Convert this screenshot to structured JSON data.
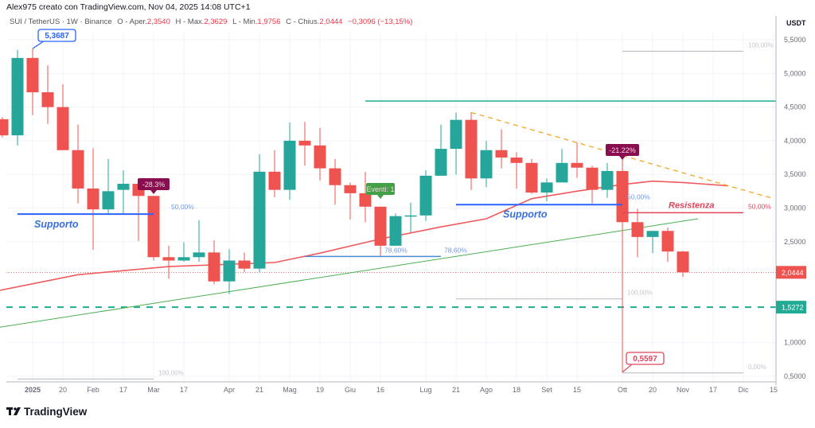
{
  "header": {
    "credit": "Alex975 creato con TradingView.com, Nov 04, 2025 14:08 UTC+1",
    "symbol": "SUI / TetherUS · 1W · Binance",
    "open_label": "O - Aper.",
    "open": "2,3540",
    "high_label": "H - Max.",
    "high": "2,3629",
    "low_label": "L - Min.",
    "low": "1,9756",
    "close_label": "C - Chius.",
    "close": "2,0444",
    "change": "−0,3096 (−13,15%)"
  },
  "brand": "TradingView",
  "colors": {
    "up": "#26a69a",
    "down": "#ef5350",
    "ma": "#f05a5e",
    "support": "#2962ff",
    "resist": "#e0455a",
    "trend": "#4caf50",
    "dashed_orange": "#f5a623",
    "teal_level": "#22ab94",
    "badge": "#880e4f",
    "event": "#4caf50",
    "fib_gray": "#b2b5be"
  },
  "chart_data": {
    "type": "candlestick",
    "timeframe": "1W",
    "currency": "USDT",
    "ylim": [
      0.45,
      5.75
    ],
    "grid": true,
    "y_ticks": [
      "5,5000",
      "5,0000",
      "4,5000",
      "4,0000",
      "3,5000",
      "3,0000",
      "2,5000",
      "1,0000",
      "0,5000"
    ],
    "y_tick_values": [
      5.5,
      5.0,
      4.5,
      4.0,
      3.5,
      3.0,
      2.5,
      1.0,
      0.5
    ],
    "x_ticks": [
      {
        "label": "2025",
        "date": "2025-01-06",
        "bold": true
      },
      {
        "label": "20",
        "date": "2025-01-20"
      },
      {
        "label": "Feb",
        "date": "2025-02-03"
      },
      {
        "label": "17",
        "date": "2025-02-17"
      },
      {
        "label": "Mar",
        "date": "2025-03-03"
      },
      {
        "label": "17",
        "date": "2025-03-17"
      },
      {
        "label": "Apr",
        "date": "2025-04-07"
      },
      {
        "label": "21",
        "date": "2025-04-21"
      },
      {
        "label": "Mag",
        "date": "2025-05-05"
      },
      {
        "label": "19",
        "date": "2025-05-19"
      },
      {
        "label": "Giu",
        "date": "2025-06-02"
      },
      {
        "label": "16",
        "date": "2025-06-16"
      },
      {
        "label": "Lug",
        "date": "2025-07-07"
      },
      {
        "label": "21",
        "date": "2025-07-21"
      },
      {
        "label": "Ago",
        "date": "2025-08-04"
      },
      {
        "label": "18",
        "date": "2025-08-18"
      },
      {
        "label": "Set",
        "date": "2025-09-01"
      },
      {
        "label": "15",
        "date": "2025-09-15"
      },
      {
        "label": "Ott",
        "date": "2025-10-06"
      },
      {
        "label": "20",
        "date": "2025-10-20"
      },
      {
        "label": "Nov",
        "date": "2025-11-03"
      },
      {
        "label": "17",
        "date": "2025-11-17"
      },
      {
        "label": "Dic",
        "date": "2025-12-01"
      },
      {
        "label": "15",
        "date": "2025-12-15"
      }
    ],
    "candles": [
      {
        "date": "2024-12-23",
        "o": 4.32,
        "h": 4.35,
        "l": 4.05,
        "c": 4.08
      },
      {
        "date": "2024-12-30",
        "o": 4.08,
        "h": 5.35,
        "l": 3.93,
        "c": 5.23
      },
      {
        "date": "2025-01-06",
        "o": 5.23,
        "h": 5.3687,
        "l": 4.38,
        "c": 4.72
      },
      {
        "date": "2025-01-13",
        "o": 4.72,
        "h": 5.12,
        "l": 4.25,
        "c": 4.5
      },
      {
        "date": "2025-01-20",
        "o": 4.5,
        "h": 4.84,
        "l": 3.86,
        "c": 3.86
      },
      {
        "date": "2025-01-27",
        "o": 3.86,
        "h": 4.24,
        "l": 3.07,
        "c": 3.29
      },
      {
        "date": "2025-02-03",
        "o": 3.29,
        "h": 3.89,
        "l": 2.38,
        "c": 2.98
      },
      {
        "date": "2025-02-10",
        "o": 2.98,
        "h": 3.73,
        "l": 2.9,
        "c": 3.25
      },
      {
        "date": "2025-02-17",
        "o": 3.27,
        "h": 3.56,
        "l": 2.92,
        "c": 3.36
      },
      {
        "date": "2025-02-24",
        "o": 3.36,
        "h": 3.36,
        "l": 2.51,
        "c": 3.18
      },
      {
        "date": "2025-03-03",
        "o": 3.18,
        "h": 3.18,
        "l": 2.22,
        "c": 2.27
      },
      {
        "date": "2025-03-10",
        "o": 2.27,
        "h": 2.44,
        "l": 1.95,
        "c": 2.22
      },
      {
        "date": "2025-03-17",
        "o": 2.22,
        "h": 2.49,
        "l": 2.2,
        "c": 2.27
      },
      {
        "date": "2025-03-24",
        "o": 2.27,
        "h": 2.82,
        "l": 2.2,
        "c": 2.34
      },
      {
        "date": "2025-03-31",
        "o": 2.34,
        "h": 2.52,
        "l": 1.87,
        "c": 1.91
      },
      {
        "date": "2025-04-07",
        "o": 1.91,
        "h": 2.39,
        "l": 1.72,
        "c": 2.22
      },
      {
        "date": "2025-04-14",
        "o": 2.22,
        "h": 2.34,
        "l": 2.05,
        "c": 2.1
      },
      {
        "date": "2025-04-21",
        "o": 2.1,
        "h": 3.8,
        "l": 2.05,
        "c": 3.54
      },
      {
        "date": "2025-04-28",
        "o": 3.54,
        "h": 3.86,
        "l": 3.16,
        "c": 3.27
      },
      {
        "date": "2025-05-05",
        "o": 3.27,
        "h": 4.27,
        "l": 3.12,
        "c": 4.0
      },
      {
        "date": "2025-05-12",
        "o": 4.0,
        "h": 4.28,
        "l": 3.63,
        "c": 3.93
      },
      {
        "date": "2025-05-19",
        "o": 3.93,
        "h": 4.19,
        "l": 3.41,
        "c": 3.59
      },
      {
        "date": "2025-05-26",
        "o": 3.59,
        "h": 3.73,
        "l": 3.05,
        "c": 3.34
      },
      {
        "date": "2025-06-02",
        "o": 3.34,
        "h": 3.38,
        "l": 2.83,
        "c": 3.22
      },
      {
        "date": "2025-06-09",
        "o": 3.22,
        "h": 3.54,
        "l": 2.79,
        "c": 3.02
      },
      {
        "date": "2025-06-16",
        "o": 3.02,
        "h": 3.02,
        "l": 2.28,
        "c": 2.44
      },
      {
        "date": "2025-06-23",
        "o": 2.44,
        "h": 2.92,
        "l": 2.44,
        "c": 2.88
      },
      {
        "date": "2025-06-30",
        "o": 2.88,
        "h": 3.08,
        "l": 2.64,
        "c": 2.89
      },
      {
        "date": "2025-07-07",
        "o": 2.89,
        "h": 3.56,
        "l": 2.81,
        "c": 3.48
      },
      {
        "date": "2025-07-14",
        "o": 3.48,
        "h": 4.24,
        "l": 3.48,
        "c": 3.88
      },
      {
        "date": "2025-07-21",
        "o": 3.88,
        "h": 4.42,
        "l": 3.5,
        "c": 4.31
      },
      {
        "date": "2025-07-28",
        "o": 4.31,
        "h": 4.42,
        "l": 3.27,
        "c": 3.44
      },
      {
        "date": "2025-08-04",
        "o": 3.44,
        "h": 4.0,
        "l": 3.31,
        "c": 3.86
      },
      {
        "date": "2025-08-11",
        "o": 3.86,
        "h": 4.17,
        "l": 3.59,
        "c": 3.75
      },
      {
        "date": "2025-08-18",
        "o": 3.75,
        "h": 3.83,
        "l": 3.29,
        "c": 3.67
      },
      {
        "date": "2025-08-25",
        "o": 3.67,
        "h": 3.73,
        "l": 3.21,
        "c": 3.23
      },
      {
        "date": "2025-09-01",
        "o": 3.23,
        "h": 3.44,
        "l": 3.1,
        "c": 3.38
      },
      {
        "date": "2025-09-08",
        "o": 3.38,
        "h": 3.88,
        "l": 3.38,
        "c": 3.67
      },
      {
        "date": "2025-09-15",
        "o": 3.67,
        "h": 3.97,
        "l": 3.45,
        "c": 3.6
      },
      {
        "date": "2025-09-22",
        "o": 3.6,
        "h": 3.63,
        "l": 3.07,
        "c": 3.27
      },
      {
        "date": "2025-09-29",
        "o": 3.27,
        "h": 3.67,
        "l": 3.15,
        "c": 3.55
      },
      {
        "date": "2025-10-06",
        "o": 3.55,
        "h": 3.73,
        "l": 0.5597,
        "c": 2.79
      },
      {
        "date": "2025-10-13",
        "o": 2.79,
        "h": 2.99,
        "l": 2.27,
        "c": 2.57
      },
      {
        "date": "2025-10-20",
        "o": 2.57,
        "h": 2.66,
        "l": 2.33,
        "c": 2.66
      },
      {
        "date": "2025-10-27",
        "o": 2.66,
        "h": 2.71,
        "l": 2.2,
        "c": 2.354
      },
      {
        "date": "2025-11-03",
        "o": 2.354,
        "h": 2.3629,
        "l": 1.9756,
        "c": 2.0444
      }
    ],
    "moving_average": [
      {
        "date": "2024-12-16",
        "v": 1.74
      },
      {
        "date": "2025-01-27",
        "v": 2.01
      },
      {
        "date": "2025-03-10",
        "v": 2.13
      },
      {
        "date": "2025-04-28",
        "v": 2.19
      },
      {
        "date": "2025-05-19",
        "v": 2.33
      },
      {
        "date": "2025-06-16",
        "v": 2.54
      },
      {
        "date": "2025-07-14",
        "v": 2.72
      },
      {
        "date": "2025-08-04",
        "v": 2.84
      },
      {
        "date": "2025-08-25",
        "v": 3.14
      },
      {
        "date": "2025-09-15",
        "v": 3.25
      },
      {
        "date": "2025-10-06",
        "v": 3.35
      },
      {
        "date": "2025-10-20",
        "v": 3.4
      },
      {
        "date": "2025-11-03",
        "v": 3.38
      },
      {
        "date": "2025-11-24",
        "v": 3.33
      }
    ],
    "last_price": {
      "value": 2.0444,
      "label": "2,0444"
    },
    "level_price": {
      "value": 1.5272,
      "label": "1,5272"
    },
    "drawings": {
      "teal_resistance": {
        "value": 4.59,
        "from": "2025-06-09"
      },
      "teal_dashed": {
        "value": 1.5272
      },
      "trendline": {
        "from": {
          "date": "2024-12-16",
          "v": 1.2
        },
        "to": {
          "date": "2025-11-10",
          "v": 2.84
        }
      },
      "orange_dashed": {
        "from": {
          "date": "2025-07-28",
          "v": 4.42
        },
        "to": {
          "date": "2025-12-15",
          "v": 3.14
        }
      },
      "support1": {
        "value": 2.91,
        "from": "2024-12-30",
        "to": "2025-03-03",
        "label": "Supporto",
        "fib": "50,00%"
      },
      "support2": {
        "value": 3.05,
        "from": "2025-07-21",
        "to": "2025-10-06",
        "label": "Supporto",
        "fib": "50,00%"
      },
      "fib786": {
        "value": 2.28,
        "from": "2025-05-12",
        "to": "2025-07-14",
        "label_a": "78,60%",
        "label_b": "78,60%"
      },
      "resistance": {
        "value": 2.93,
        "from": "2025-10-06",
        "to": "2025-12-01",
        "label": "Resistenza",
        "fib": "50,00%"
      },
      "fib_gray": [
        {
          "value": 5.33,
          "from": "2025-10-06",
          "to": "2025-12-01",
          "label": "100,00%"
        },
        {
          "value": 0.55,
          "from": "2025-10-06",
          "to": "2025-12-01",
          "label": "0,00%"
        },
        {
          "value": 1.65,
          "from": "2025-07-21",
          "to": "2025-10-06",
          "label": "100,00%"
        },
        {
          "value": 0.46,
          "from": "2024-12-30",
          "to": "2025-03-03",
          "label": "100,00%"
        }
      ],
      "callout_high": {
        "label": "5,3687",
        "date": "2025-01-06",
        "v": 5.3687
      },
      "callout_low": {
        "label": "0,5597",
        "date": "2025-10-06",
        "v": 0.5597
      },
      "badge_1": {
        "label": "-28.3%",
        "date": "2025-03-03"
      },
      "badge_2": {
        "label": "-21.22%",
        "date": "2025-10-06"
      },
      "event": {
        "label": "Eventi: 1",
        "date": "2025-06-16"
      }
    }
  }
}
